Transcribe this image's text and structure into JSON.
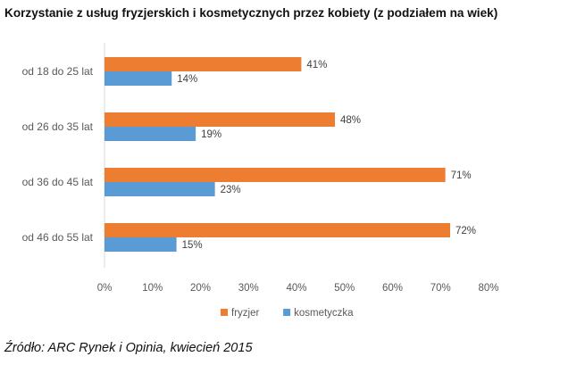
{
  "title": "Korzystanie z usług fryzjerskich i kosmetycznych przez kobiety (z podziałem na wiek)",
  "source": "Źródło: ARC Rynek i Opinia, kwiecień 2015",
  "chart_data": {
    "type": "bar",
    "orientation": "horizontal",
    "categories": [
      "od 18 do 25 lat",
      "od 26 do 35 lat",
      "od 36 do 45 lat",
      "od 46 do 55 lat"
    ],
    "series": [
      {
        "name": "fryzjer",
        "values": [
          41,
          48,
          71,
          72
        ],
        "color": "#ED7D31"
      },
      {
        "name": "kosmetyczka",
        "values": [
          14,
          19,
          23,
          15
        ],
        "color": "#5B9BD5"
      }
    ],
    "value_suffix": "%",
    "xlim": [
      0,
      80
    ],
    "xticks": [
      0,
      10,
      20,
      30,
      40,
      50,
      60,
      70,
      80
    ],
    "xtick_labels": [
      "0%",
      "10%",
      "20%",
      "30%",
      "40%",
      "50%",
      "60%",
      "70%",
      "80%"
    ],
    "grid": false,
    "legend_position": "bottom"
  }
}
